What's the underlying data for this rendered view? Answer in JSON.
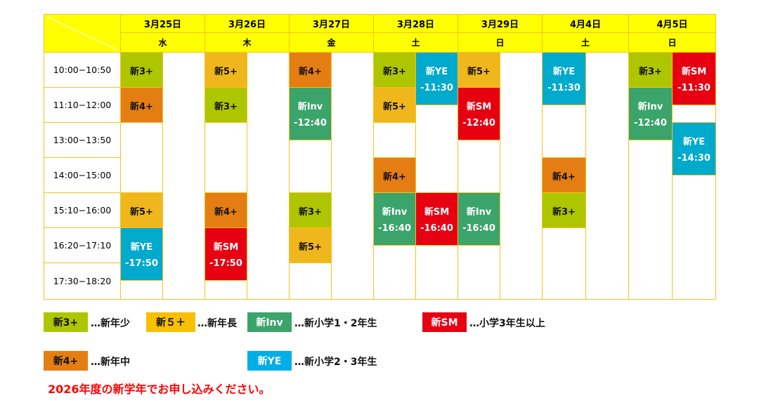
{
  "colors": {
    "header": "#ffff00",
    "border": "#f7c21b",
    "3+": "#adc600",
    "5+": "#f0b71c",
    "4+": "#e57e12",
    "Inv": "#3aa46a",
    "SM": "#e60012",
    "YE": "#00aacc"
  },
  "days": [
    {
      "date": "3月25日",
      "weekday": "水"
    },
    {
      "date": "3月26日",
      "weekday": "木"
    },
    {
      "date": "3月27日",
      "weekday": "金"
    },
    {
      "date": "3月28日",
      "weekday": "土"
    },
    {
      "date": "3月29日",
      "weekday": "日"
    },
    {
      "date": "4月4日",
      "weekday": "土"
    },
    {
      "date": "4月5日",
      "weekday": "日"
    }
  ],
  "time_slots": [
    "10:00−10:50",
    "11:10−12:00",
    "13:00−13:50",
    "14:00−15:00",
    "15:10−16:00",
    "16:20−17:10",
    "17:30−18:20"
  ],
  "blocks": [
    {
      "day": 0,
      "lane": 0,
      "type": "3+",
      "label": "新3+",
      "start": "10:00",
      "end": "10:50"
    },
    {
      "day": 0,
      "lane": 0,
      "type": "4+",
      "label": "新4+",
      "start": "11:10",
      "end": "12:00"
    },
    {
      "day": 0,
      "lane": 0,
      "type": "5+",
      "label": "新5+",
      "start": "15:10",
      "end": "16:00"
    },
    {
      "day": 0,
      "lane": 0,
      "type": "YE",
      "label": "新YE",
      "until": "-17:50",
      "start": "16:20",
      "end": "17:50"
    },
    {
      "day": 1,
      "lane": 0,
      "type": "5+",
      "label": "新5+",
      "start": "10:00",
      "end": "10:50"
    },
    {
      "day": 1,
      "lane": 0,
      "type": "3+",
      "label": "新3+",
      "start": "11:10",
      "end": "12:00"
    },
    {
      "day": 1,
      "lane": 0,
      "type": "4+",
      "label": "新4+",
      "start": "15:10",
      "end": "16:00"
    },
    {
      "day": 1,
      "lane": 0,
      "type": "SM",
      "label": "新SM",
      "until": "-17:50",
      "start": "16:20",
      "end": "17:50"
    },
    {
      "day": 2,
      "lane": 0,
      "type": "4+",
      "label": "新4+",
      "start": "10:00",
      "end": "10:50"
    },
    {
      "day": 2,
      "lane": 0,
      "type": "Inv",
      "label": "新Inv",
      "until": "-12:40",
      "start": "11:10",
      "end": "12:40"
    },
    {
      "day": 2,
      "lane": 0,
      "type": "3+",
      "label": "新3+",
      "start": "15:10",
      "end": "16:00"
    },
    {
      "day": 2,
      "lane": 0,
      "type": "5+",
      "label": "新5+",
      "start": "16:20",
      "end": "17:10"
    },
    {
      "day": 3,
      "lane": 0,
      "type": "3+",
      "label": "新3+",
      "start": "10:00",
      "end": "10:50"
    },
    {
      "day": 3,
      "lane": 1,
      "type": "YE",
      "label": "新YE",
      "until": "-11:30",
      "start": "10:00",
      "end": "11:30"
    },
    {
      "day": 3,
      "lane": 0,
      "type": "5+",
      "label": "新5+",
      "start": "11:10",
      "end": "12:00"
    },
    {
      "day": 3,
      "lane": 0,
      "type": "4+",
      "label": "新4+",
      "start": "14:00",
      "end": "15:00"
    },
    {
      "day": 3,
      "lane": 0,
      "type": "Inv",
      "label": "新Inv",
      "until": "-16:40",
      "start": "15:10",
      "end": "16:40"
    },
    {
      "day": 3,
      "lane": 1,
      "type": "SM",
      "label": "新SM",
      "until": "-16:40",
      "start": "15:10",
      "end": "16:40"
    },
    {
      "day": 4,
      "lane": 0,
      "type": "5+",
      "label": "新5+",
      "start": "10:00",
      "end": "10:50"
    },
    {
      "day": 4,
      "lane": 0,
      "type": "SM",
      "label": "新SM",
      "until": "-12:40",
      "start": "11:10",
      "end": "12:40"
    },
    {
      "day": 4,
      "lane": 0,
      "type": "Inv",
      "label": "新Inv",
      "until": "-16:40",
      "start": "15:10",
      "end": "16:40"
    },
    {
      "day": 5,
      "lane": 0,
      "type": "YE",
      "label": "新YE",
      "until": "-11:30",
      "start": "10:00",
      "end": "11:30"
    },
    {
      "day": 5,
      "lane": 0,
      "type": "4+",
      "label": "新4+",
      "start": "14:00",
      "end": "15:00"
    },
    {
      "day": 5,
      "lane": 0,
      "type": "3+",
      "label": "新3+",
      "start": "15:10",
      "end": "16:00"
    },
    {
      "day": 6,
      "lane": 0,
      "type": "3+",
      "label": "新3+",
      "start": "10:00",
      "end": "10:50"
    },
    {
      "day": 6,
      "lane": 1,
      "type": "SM",
      "label": "新SM",
      "until": "-11:30",
      "start": "10:00",
      "end": "11:30"
    },
    {
      "day": 6,
      "lane": 0,
      "type": "Inv",
      "label": "新Inv",
      "until": "-12:40",
      "start": "11:10",
      "end": "12:40"
    },
    {
      "day": 6,
      "lane": 1,
      "type": "YE",
      "label": "新YE",
      "until": "-14:30",
      "start": "13:00",
      "end": "14:30"
    }
  ],
  "legend": [
    {
      "type": "3+",
      "badge": "新3+",
      "desc": "…新年少",
      "bg": "#adc600",
      "fg": "#111"
    },
    {
      "type": "5+",
      "badge": "新５＋",
      "desc": "…新年長",
      "bg": "#f9c000",
      "fg": "#111"
    },
    {
      "type": "Inv",
      "badge": "新Inv",
      "desc": "…新小学1・2年生",
      "bg": "#3aa46a",
      "fg": "#fff"
    },
    {
      "type": "SM",
      "badge": "新SM",
      "desc": "…小学3年生以上",
      "bg": "#e60012",
      "fg": "#fff"
    },
    {
      "type": "4+",
      "badge": "新4+",
      "desc": "…新年中",
      "bg": "#e57e12",
      "fg": "#111"
    },
    {
      "type": "YE",
      "badge": "新YE",
      "desc": "…新小学2・3年生",
      "bg": "#00aee8",
      "fg": "#fff"
    }
  ],
  "note": "2026年度の新学年でお申し込みください。"
}
